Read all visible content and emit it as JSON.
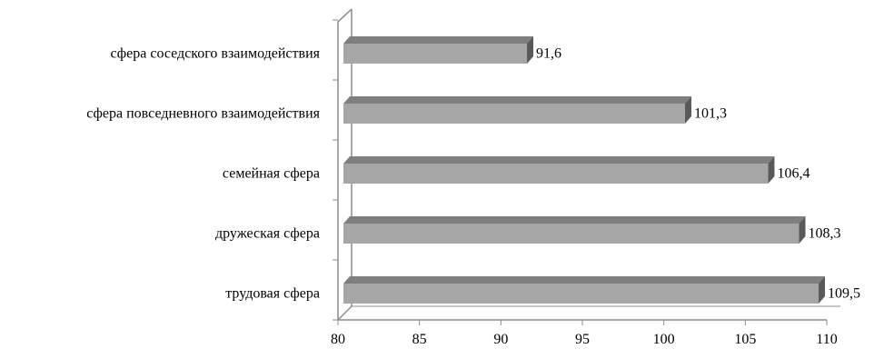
{
  "chart_data": {
    "type": "bar",
    "orientation": "horizontal",
    "style": "3d",
    "categories": [
      "сфера соседского взаимодействия",
      "сфера повседневного взаимодействия",
      "семейная сфера",
      "дружеская сфера",
      "трудовая сфера"
    ],
    "values": [
      91.6,
      101.3,
      106.4,
      108.3,
      109.5
    ],
    "value_labels": [
      "91,6",
      "101,3",
      "106,4",
      "108,3",
      "109,5"
    ],
    "title": "",
    "xlabel": "",
    "ylabel": "",
    "xlim": [
      80,
      110
    ],
    "x_ticks": [
      80,
      85,
      90,
      95,
      100,
      105,
      110
    ],
    "x_tick_labels": [
      "80",
      "85",
      "90",
      "95",
      "100",
      "105",
      "110"
    ],
    "grid": false,
    "legend": "none",
    "colors": {
      "bar_front": "#a6a6a6",
      "bar_top": "#7f7f7f",
      "bar_side": "#595959",
      "axis": "#8c8c8c",
      "text": "#000000"
    }
  }
}
